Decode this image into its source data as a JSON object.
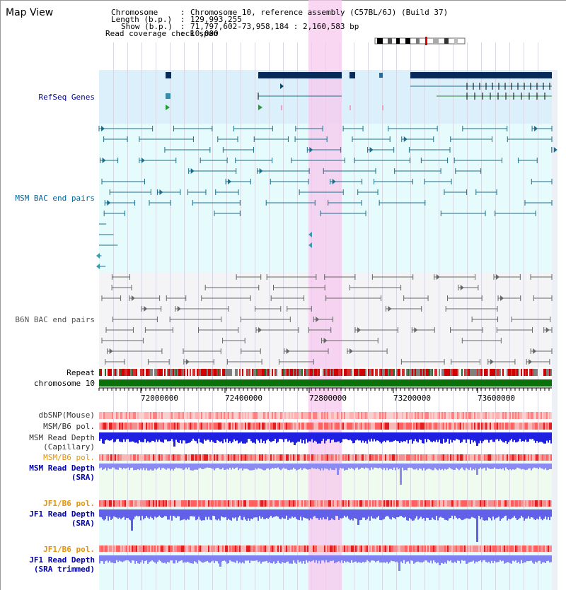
{
  "page": {
    "title": "Map View"
  },
  "header": {
    "chromosome_label": "Chromosome",
    "chromosome_value": "Chromosome 10, reference assembly (C57BL/6J) (Build 37)",
    "length_label": "Length (b.p.)",
    "length_value": "129,993,255",
    "show_label": "Show (b.p.)",
    "show_value": "71,797,602-73,958,184 : 2,160,583 bp",
    "span_label": "Read coverage check span",
    "span_value": "10,000"
  },
  "tracks": {
    "refseq": "RefSeq Genes",
    "msm_bac": "MSM BAC end pairs",
    "b6n_bac": "B6N BAC end pairs",
    "repeat": "Repeat",
    "chromosome": "chromosome 10",
    "dbsnp": "dbSNP(Mouse)",
    "msm_b6_pol_1": "MSM/B6 pol.",
    "msm_depth_cap_1": "MSM Read Depth",
    "msm_depth_cap_2": "(Capillary)",
    "msm_b6_pol_2": "MSM/B6 pol.",
    "msm_depth_sra_1": "MSM Read Depth",
    "msm_depth_sra_2": "(SRA)",
    "jf1_b6_pol_1": "JF1/B6 pol.",
    "jf1_depth_sra_1": "JF1 Read Depth",
    "jf1_depth_sra_2": "(SRA)",
    "jf1_b6_pol_2": "JF1/B6 pol.",
    "jf1_depth_trim_1": "JF1 Read Depth",
    "jf1_depth_trim_2": "(SRA trimmed)"
  },
  "axis": {
    "ticks": [
      "72000000",
      "72400000",
      "72800000",
      "73200000",
      "73600000"
    ]
  },
  "colors": {
    "refseq_label": "#000099",
    "msm_label": "#006699",
    "b6n_label": "#555555",
    "pol_label": "#e69500",
    "depth_label": "#0000aa"
  }
}
